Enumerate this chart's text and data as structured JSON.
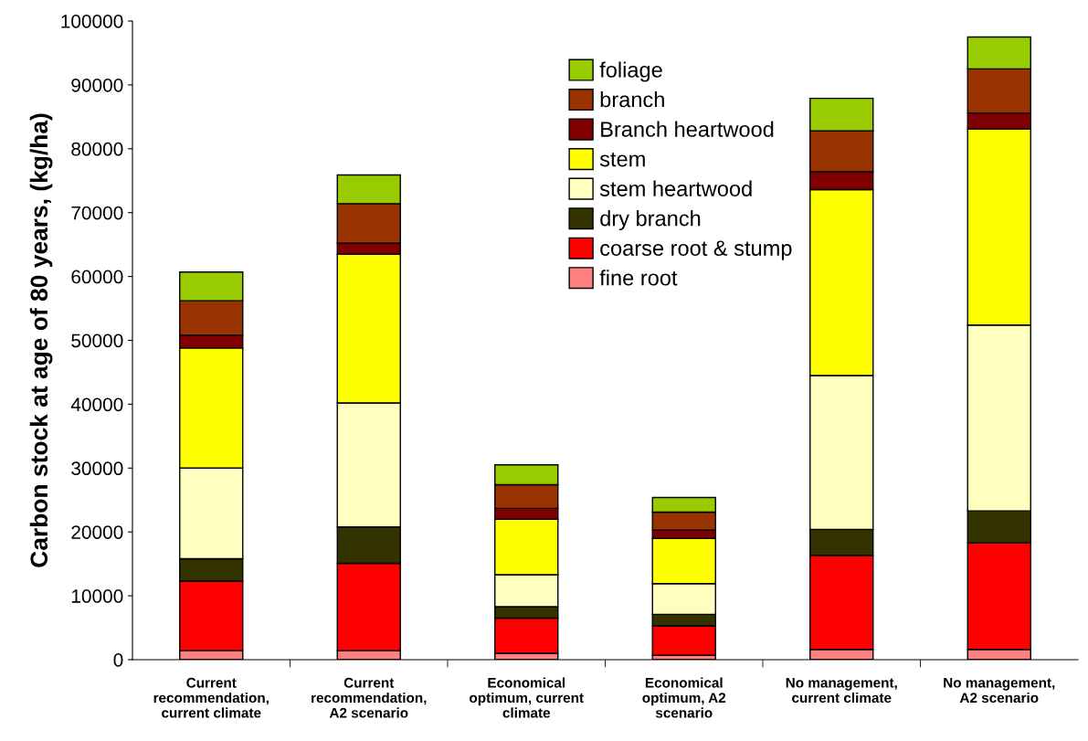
{
  "chart_data": {
    "type": "bar",
    "stacked": true,
    "ylabel": "Carbon stock at age of 80 years, (kg/ha)",
    "categories": [
      "Current\nrecommendation,\ncurrent climate",
      "Current\nrecommendation,\nA2 scenario",
      "Economical\noptimum, current\nclimate",
      "Economical\noptimum, A2\nscenario",
      "No management,\ncurrent climate",
      "No management,\nA2 scenario"
    ],
    "series": [
      {
        "name": "fine root",
        "color": "#ff8080",
        "values": [
          1400,
          1400,
          1000,
          700,
          1600,
          1600
        ]
      },
      {
        "name": "coarse root & stump",
        "color": "#ff0000",
        "values": [
          10900,
          13700,
          5500,
          4600,
          14700,
          16700
        ]
      },
      {
        "name": "dry branch",
        "color": "#333300",
        "values": [
          3500,
          5700,
          1800,
          1800,
          4100,
          5000
        ]
      },
      {
        "name": "stem heartwood",
        "color": "#ffffc0",
        "values": [
          14200,
          19400,
          5000,
          4800,
          24100,
          29100
        ]
      },
      {
        "name": "stem",
        "color": "#ffff00",
        "values": [
          18800,
          23300,
          8700,
          7100,
          29100,
          30700
        ]
      },
      {
        "name": "Branch heartwood",
        "color": "#800000",
        "values": [
          2000,
          1700,
          1700,
          1300,
          2800,
          2500
        ]
      },
      {
        "name": "branch",
        "color": "#993300",
        "values": [
          5400,
          6200,
          3700,
          2800,
          6400,
          6900
        ]
      },
      {
        "name": "foliage",
        "color": "#99cc00",
        "values": [
          4500,
          4500,
          3100,
          2300,
          5100,
          5000
        ]
      }
    ],
    "ylim": [
      0,
      100000
    ],
    "yticks": [
      0,
      10000,
      20000,
      30000,
      40000,
      50000,
      60000,
      70000,
      80000,
      90000,
      100000
    ],
    "legend": "top",
    "grid": false
  }
}
